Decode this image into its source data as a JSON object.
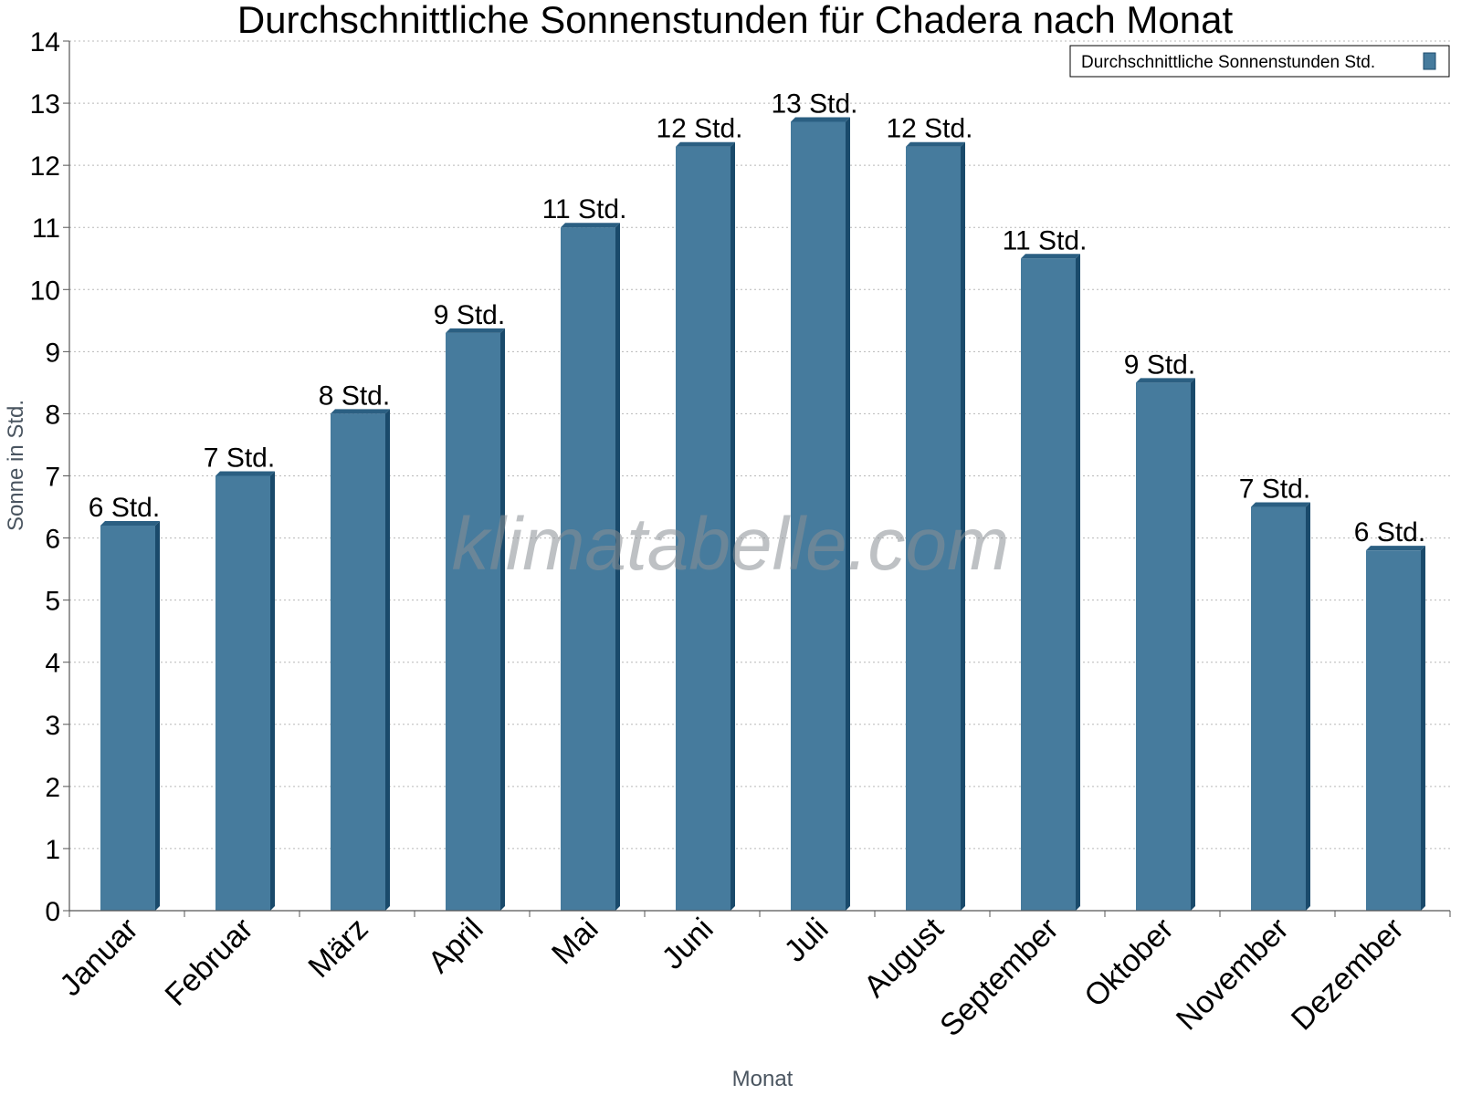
{
  "watermark": "klimatabelle.com",
  "colors": {
    "bar_face": "#467b9d",
    "bar_side": "#1a4a6b",
    "bar_top": "#2b5f82",
    "grid": "#b8b8b8",
    "axis": "#555555"
  },
  "chart_data": {
    "type": "bar",
    "title": "Durchschnittliche Sonnenstunden für Chadera nach Monat",
    "xlabel": "Monat",
    "ylabel": "Sonne in Std.",
    "ylim": [
      0,
      14
    ],
    "yticks": [
      "0",
      "1",
      "2",
      "3",
      "4",
      "5",
      "6",
      "7",
      "8",
      "9",
      "10",
      "11",
      "12",
      "13",
      "14"
    ],
    "grid": true,
    "legend_position": "top-right",
    "categories": [
      "Januar",
      "Februar",
      "März",
      "April",
      "Mai",
      "Juni",
      "Juli",
      "August",
      "September",
      "Oktober",
      "November",
      "Dezember"
    ],
    "series": [
      {
        "name": "Durchschnittliche Sonnenstunden Std.",
        "values": [
          6.2,
          7.0,
          8.0,
          9.3,
          11.0,
          12.3,
          12.7,
          12.3,
          10.5,
          8.5,
          6.5,
          5.8
        ],
        "labels": [
          "6 Std.",
          "7 Std.",
          "8 Std.",
          "9 Std.",
          "11 Std.",
          "12 Std.",
          "13 Std.",
          "12 Std.",
          "11 Std.",
          "9 Std.",
          "7 Std.",
          "6 Std."
        ]
      }
    ]
  }
}
